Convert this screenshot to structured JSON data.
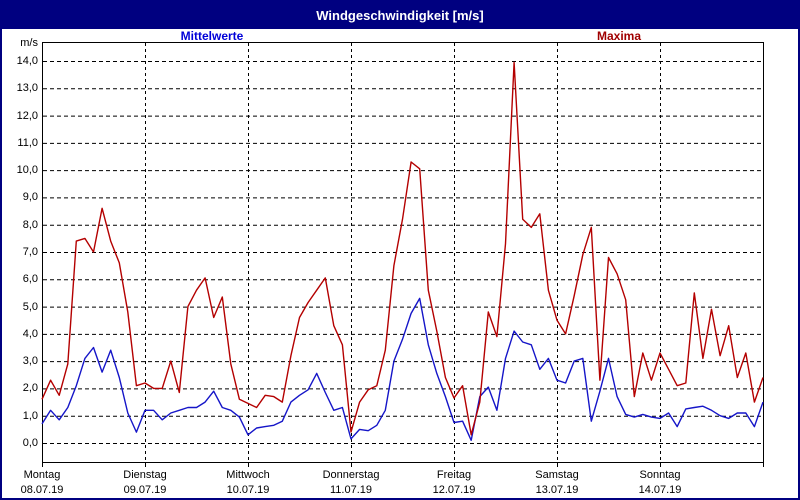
{
  "title": "Windgeschwindigkeit [m/s]",
  "legend": {
    "mean_label": "Mittelwerte",
    "max_label": "Maxima",
    "mean_color": "#0000d8",
    "max_color": "#a00000"
  },
  "colors": {
    "titlebar_bg": "#000080",
    "titlebar_text": "#ffffff",
    "window_border": "#000080",
    "plot_frame": "#000000",
    "gridline": "#000000",
    "mean_line": "#1515c8",
    "max_line": "#b40000"
  },
  "y_axis": {
    "unit": "m/s",
    "tick_labels": [
      "0,0",
      "1,0",
      "2,0",
      "3,0",
      "4,0",
      "5,0",
      "6,0",
      "7,0",
      "8,0",
      "9,0",
      "10,0",
      "11,0",
      "12,0",
      "13,0",
      "14,0"
    ]
  },
  "x_axis": {
    "days": [
      {
        "weekday": "Montag",
        "date": "08.07.19"
      },
      {
        "weekday": "Dienstag",
        "date": "09.07.19"
      },
      {
        "weekday": "Mittwoch",
        "date": "10.07.19"
      },
      {
        "weekday": "Donnerstag",
        "date": "11.07.19"
      },
      {
        "weekday": "Freitag",
        "date": "12.07.19"
      },
      {
        "weekday": "Samstag",
        "date": "13.07.19"
      },
      {
        "weekday": "Sonntag",
        "date": "14.07.19"
      }
    ]
  },
  "chart_data": {
    "type": "line",
    "title": "Windgeschwindigkeit [m/s]",
    "ylabel": "m/s",
    "ylim": [
      0,
      14
    ],
    "y_major_step": 1.0,
    "grid": "dashed horizontal at every 1.0 m/s, dashed vertical at each midnight",
    "legend_position": "top, outside plot (Mittelwerte left, Maxima right)",
    "x_days": [
      "Montag 08.07.19",
      "Dienstag 09.07.19",
      "Mittwoch 10.07.19",
      "Donnerstag 11.07.19",
      "Freitag 12.07.19",
      "Samstag 13.07.19",
      "Sonntag 14.07.19"
    ],
    "sampling": "every 2 hours, Mon 00:00 through Sun 24:00 (85 points)",
    "series": [
      {
        "name": "Mittelwerte",
        "color": "#1515c8",
        "values": [
          0.7,
          1.2,
          0.85,
          1.3,
          2.1,
          3.1,
          3.5,
          2.6,
          3.4,
          2.4,
          1.1,
          0.4,
          1.2,
          1.2,
          0.85,
          1.1,
          1.2,
          1.3,
          1.3,
          1.5,
          1.9,
          1.3,
          1.2,
          0.95,
          0.3,
          0.55,
          0.6,
          0.65,
          0.8,
          1.5,
          1.75,
          1.95,
          2.55,
          1.85,
          1.2,
          1.3,
          0.15,
          0.5,
          0.45,
          0.65,
          1.2,
          3.0,
          3.8,
          4.75,
          5.3,
          3.6,
          2.55,
          1.7,
          0.75,
          0.8,
          0.1,
          1.7,
          2.05,
          1.2,
          3.1,
          4.1,
          3.7,
          3.6,
          2.7,
          3.1,
          2.3,
          2.2,
          3.0,
          3.1,
          0.8,
          1.9,
          3.1,
          1.7,
          1.05,
          0.95,
          1.05,
          0.95,
          0.9,
          1.1,
          0.6,
          1.25,
          1.3,
          1.35,
          1.2,
          1.0,
          0.9,
          1.1,
          1.1,
          0.6,
          1.5
        ]
      },
      {
        "name": "Maxima",
        "color": "#b40000",
        "values": [
          1.6,
          2.3,
          1.75,
          2.9,
          7.4,
          7.5,
          7.0,
          8.6,
          7.4,
          6.6,
          4.8,
          2.1,
          2.2,
          2.0,
          2.0,
          3.0,
          1.85,
          5.0,
          5.6,
          6.05,
          4.6,
          5.35,
          2.9,
          1.6,
          1.45,
          1.3,
          1.75,
          1.7,
          1.5,
          3.2,
          4.6,
          5.15,
          5.6,
          6.05,
          4.3,
          3.6,
          0.4,
          1.5,
          1.95,
          2.1,
          3.4,
          6.5,
          8.2,
          10.3,
          10.05,
          5.6,
          4.1,
          2.4,
          1.65,
          2.1,
          0.3,
          1.5,
          4.8,
          3.9,
          7.3,
          13.95,
          8.2,
          7.9,
          8.4,
          5.6,
          4.5,
          4.0,
          5.4,
          6.9,
          7.9,
          2.3,
          6.8,
          6.2,
          5.25,
          1.7,
          3.3,
          2.3,
          3.3,
          2.7,
          2.1,
          2.2,
          5.5,
          3.1,
          4.9,
          3.2,
          4.3,
          2.4,
          3.3,
          1.5,
          2.4
        ]
      }
    ]
  }
}
